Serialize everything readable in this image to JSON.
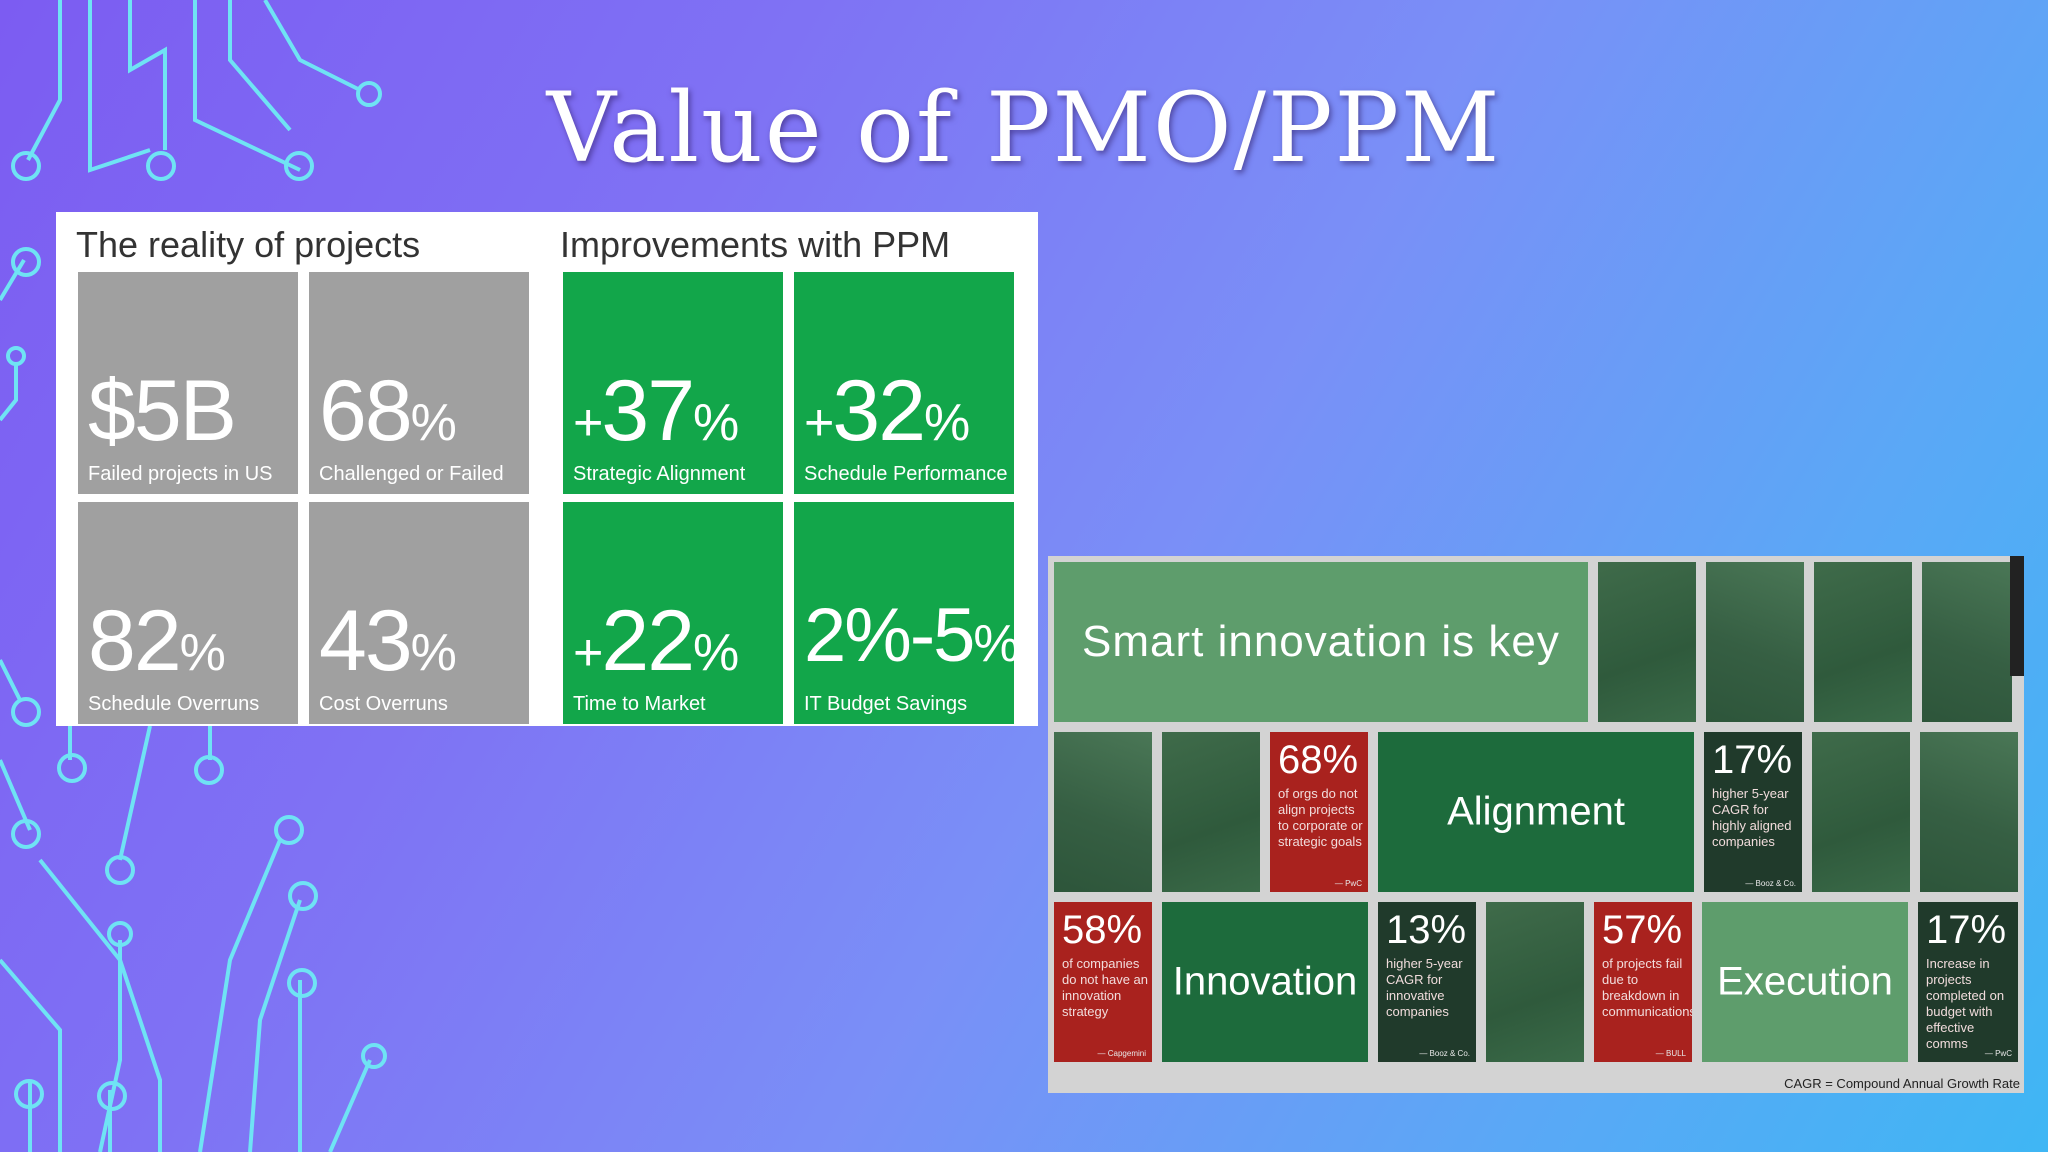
{
  "slide": {
    "title": "Value of PMO/PPM"
  },
  "left_panel": {
    "reality_heading": "The reality of projects",
    "improvements_heading": "Improvements with PPM",
    "reality_tiles": [
      {
        "value": "$5B",
        "unit": "",
        "label": "Failed projects in US"
      },
      {
        "value": "68",
        "unit": "%",
        "label": "Challenged or Failed"
      },
      {
        "value": "82",
        "unit": "%",
        "label": "Schedule Overruns"
      },
      {
        "value": "43",
        "unit": "%",
        "label": "Cost Overruns"
      }
    ],
    "improvement_tiles": [
      {
        "prefix": "+",
        "value": "37",
        "unit": "%",
        "label": "Strategic Alignment"
      },
      {
        "prefix": "+",
        "value": "32",
        "unit": "%",
        "label": "Schedule Performance"
      },
      {
        "prefix": "+",
        "value": "22",
        "unit": "%",
        "label": "Time to Market"
      },
      {
        "prefix": "",
        "value": "2%-5",
        "unit": "%",
        "label": "IT Budget Savings"
      }
    ],
    "colors": {
      "gray_tile": "#a0a0a0",
      "green_tile": "#12a64a"
    }
  },
  "right_panel": {
    "key_banner": "Smart innovation is key",
    "alignment_label": "Alignment",
    "innovation_label": "Innovation",
    "execution_label": "Execution",
    "stats": [
      {
        "pct": "68%",
        "desc": "of orgs do not align projects to corporate or strategic goals",
        "source": "— PwC"
      },
      {
        "pct": "17%",
        "desc": "higher 5-year CAGR for highly aligned companies",
        "source": "— Booz & Co."
      },
      {
        "pct": "58%",
        "desc": "of companies do not have an innovation strategy",
        "source": "— Capgemini"
      },
      {
        "pct": "13%",
        "desc": "higher 5-year CAGR for innovative companies",
        "source": "— Booz & Co."
      },
      {
        "pct": "57%",
        "desc": "of projects fail due to breakdown in communications",
        "source": "— BULL"
      },
      {
        "pct": "17%",
        "desc": "Increase in projects completed on budget with effective comms",
        "source": "— PwC"
      }
    ],
    "footnote": "CAGR = Compound Annual Growth Rate",
    "colors": {
      "red": "#a9221e",
      "dark": "#203a2b",
      "green": "#1d6b3c",
      "light_green": "#5e9d6c"
    }
  }
}
